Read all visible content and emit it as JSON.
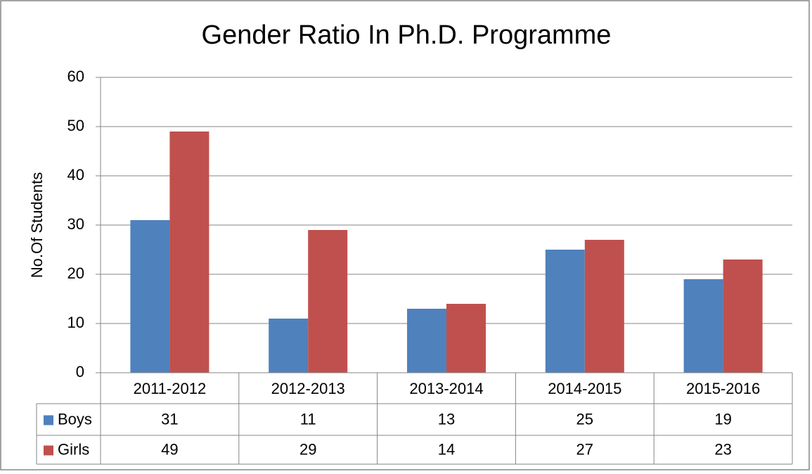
{
  "chart_data": {
    "type": "bar",
    "title": "Gender Ratio In Ph.D. Programme",
    "y_label": "No.Of Students",
    "categories": [
      "2011-2012",
      "2012-2013",
      "2013-2014",
      "2014-2015",
      "2015-2016"
    ],
    "series": [
      {
        "name": "Boys",
        "color": "#4f81bd",
        "values": [
          31,
          11,
          13,
          25,
          19
        ]
      },
      {
        "name": "Girls",
        "color": "#c0504d",
        "values": [
          49,
          29,
          14,
          27,
          23
        ]
      }
    ],
    "ylim": [
      0,
      60
    ],
    "yticks": [
      0,
      10,
      20,
      30,
      40,
      50,
      60
    ],
    "grid": true
  }
}
